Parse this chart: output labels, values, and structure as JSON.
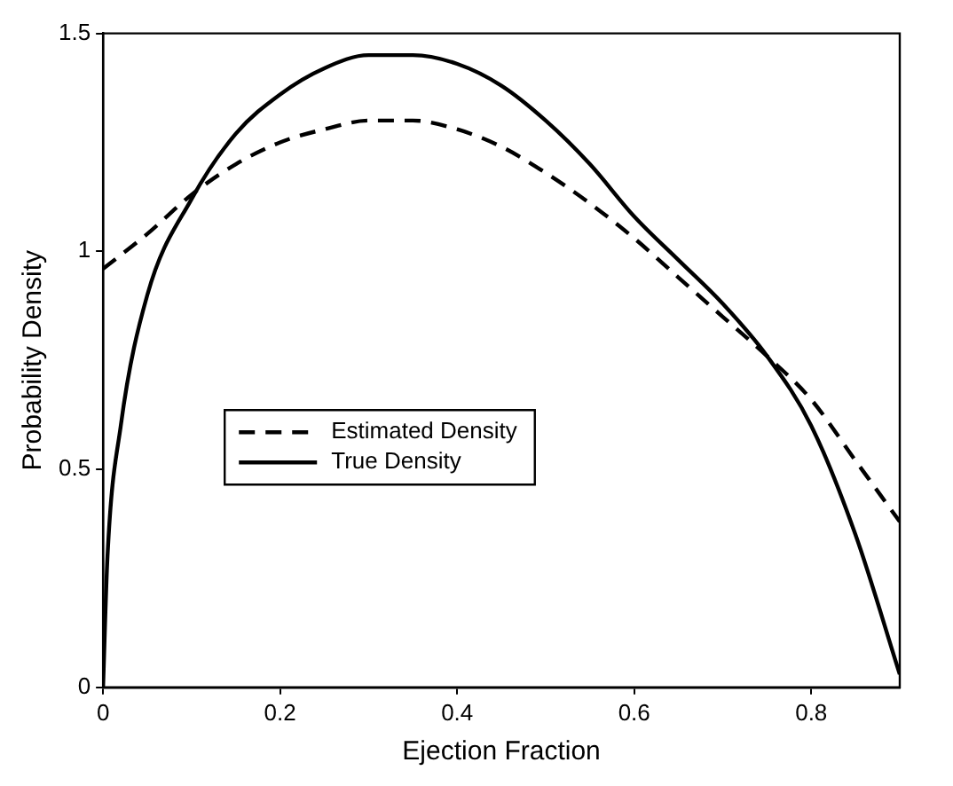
{
  "chart_data": {
    "type": "line",
    "xlabel": "Ejection Fraction",
    "ylabel": "Probability Density",
    "xlim": [
      0,
      0.9
    ],
    "xticks": [
      0,
      0.2,
      0.4,
      0.6,
      0.8
    ],
    "ylim": [
      0,
      1.5
    ],
    "yticks": [
      0,
      0.5,
      1,
      1.5
    ],
    "grid": false,
    "legend": "center left",
    "marker": "none",
    "series": [
      {
        "name": "Estimated Density",
        "color": "#000000",
        "line_style": "dashed",
        "x": [
          0,
          0.05,
          0.1,
          0.15,
          0.2,
          0.25,
          0.3,
          0.35,
          0.4,
          0.45,
          0.5,
          0.55,
          0.6,
          0.65,
          0.7,
          0.75,
          0.8,
          0.85,
          0.9
        ],
        "values": [
          0.96,
          1.04,
          1.13,
          1.2,
          1.25,
          1.28,
          1.3,
          1.3,
          1.28,
          1.24,
          1.18,
          1.11,
          1.03,
          0.94,
          0.85,
          0.76,
          0.66,
          0.52,
          0.38
        ]
      },
      {
        "name": "True Density",
        "color": "#000000",
        "line_style": "solid",
        "x": [
          0,
          0.005,
          0.02,
          0.05,
          0.1,
          0.15,
          0.2,
          0.25,
          0.3,
          0.35,
          0.4,
          0.45,
          0.5,
          0.55,
          0.6,
          0.65,
          0.7,
          0.75,
          0.8,
          0.85,
          0.9
        ],
        "values": [
          0,
          0.3,
          0.6,
          0.9,
          1.12,
          1.27,
          1.36,
          1.42,
          1.45,
          1.45,
          1.43,
          1.38,
          1.3,
          1.2,
          1.08,
          0.98,
          0.88,
          0.76,
          0.6,
          0.35,
          0.03
        ]
      }
    ]
  }
}
